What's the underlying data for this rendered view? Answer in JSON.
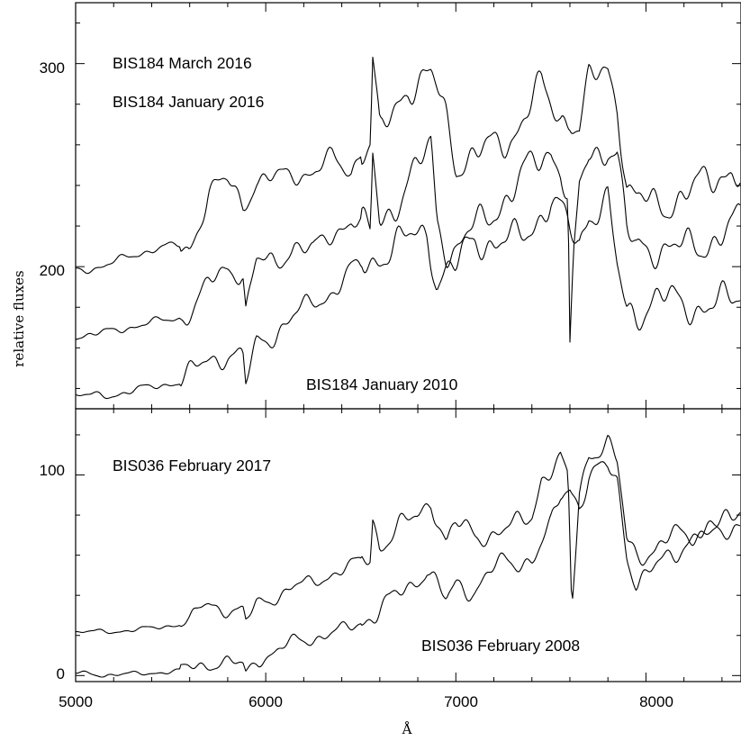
{
  "chart_data": [
    {
      "type": "line",
      "panel": "top",
      "xlabel": "Å",
      "ylabel": "relative fluxes",
      "xlim": [
        5000,
        8500
      ],
      "ylim": [
        130,
        330
      ],
      "x_ticks": [
        5000,
        6000,
        7000,
        8000
      ],
      "x_tick_labels": [
        "5000",
        "6000",
        "7000",
        "8000"
      ],
      "y_ticks": [
        200,
        300
      ],
      "y_tick_labels": [
        "200",
        "300"
      ],
      "annotations": [
        "BIS184 March 2016",
        "BIS184 January 2016",
        "BIS184 January 2010"
      ],
      "series": [
        {
          "label_ref": "BIS184 March 2016",
          "x": [
            5000,
            5150,
            5300,
            5450,
            5550,
            5600,
            5650,
            5700,
            5800,
            5880,
            5950,
            6050,
            6150,
            6250,
            6350,
            6450,
            6500,
            6550,
            6563,
            6600,
            6700,
            6750,
            6800,
            6870,
            6900,
            6950,
            7000,
            7100,
            7200,
            7300,
            7400,
            7450,
            7550,
            7600,
            7650,
            7700,
            7800,
            7850,
            7900,
            7950,
            8050,
            8150,
            8250,
            8350,
            8450,
            8500
          ],
          "values": [
            199,
            200,
            205,
            210,
            211,
            210,
            222,
            236,
            240,
            230,
            243,
            245,
            247,
            245,
            251,
            247,
            260,
            262,
            303,
            266,
            282,
            289,
            288,
            290,
            285,
            272,
            253,
            258,
            260,
            263,
            278,
            286,
            275,
            278,
            270,
            292,
            296,
            280,
            236,
            230,
            231,
            236,
            239,
            242,
            246,
            240
          ]
        },
        {
          "label_ref": "BIS184 January 2016",
          "x": [
            5000,
            5150,
            5300,
            5450,
            5550,
            5620,
            5700,
            5800,
            5880,
            5895,
            5950,
            6050,
            6150,
            6250,
            6350,
            6450,
            6550,
            6563,
            6600,
            6700,
            6800,
            6870,
            6900,
            6950,
            7000,
            7100,
            7200,
            7300,
            7400,
            7500,
            7550,
            7590,
            7600,
            7620,
            7650,
            7700,
            7800,
            7850,
            7900,
            7950,
            8050,
            8150,
            8250,
            8350,
            8450,
            8500
          ],
          "values": [
            166,
            168,
            170,
            173,
            175,
            182,
            192,
            199,
            195,
            177,
            201,
            202,
            213,
            208,
            215,
            222,
            215,
            255,
            224,
            237,
            248,
            258,
            222,
            208,
            205,
            220,
            232,
            238,
            248,
            256,
            248,
            230,
            155,
            200,
            240,
            257,
            263,
            255,
            215,
            205,
            208,
            210,
            212,
            215,
            217,
            220
          ]
        },
        {
          "label_ref": "BIS184 January 2010",
          "x": [
            5000,
            5150,
            5300,
            5450,
            5550,
            5620,
            5700,
            5800,
            5880,
            5895,
            5950,
            6050,
            6150,
            6250,
            6350,
            6450,
            6550,
            6650,
            6750,
            6850,
            6900,
            6950,
            7000,
            7100,
            7200,
            7300,
            7400,
            7500,
            7600,
            7650,
            7700,
            7800,
            7850,
            7900,
            7950,
            8050,
            8150,
            8250,
            8350,
            8450,
            8500
          ],
          "values": [
            136,
            137,
            139,
            141,
            143,
            149,
            156,
            158,
            155,
            141,
            160,
            166,
            176,
            185,
            188,
            196,
            200,
            209,
            216,
            221,
            193,
            195,
            196,
            213,
            212,
            215,
            222,
            230,
            215,
            210,
            228,
            234,
            200,
            179,
            178,
            182,
            180,
            182,
            183,
            185,
            188
          ]
        }
      ]
    },
    {
      "type": "line",
      "panel": "bottom",
      "xlabel": "Å",
      "ylabel": "relative fluxes",
      "xlim": [
        5000,
        8500
      ],
      "ylim": [
        -3,
        133
      ],
      "x_ticks": [
        5000,
        6000,
        7000,
        8000
      ],
      "x_tick_labels": [
        "5000",
        "6000",
        "7000",
        "8000"
      ],
      "y_ticks": [
        0,
        100
      ],
      "y_tick_labels": [
        "0",
        "100"
      ],
      "annotations": [
        "BIS036 February 2017",
        "BIS036 February 2008"
      ],
      "series": [
        {
          "label_ref": "BIS036 February 2017",
          "x": [
            5000,
            5150,
            5300,
            5450,
            5600,
            5650,
            5700,
            5800,
            5880,
            5895,
            5950,
            6050,
            6150,
            6250,
            6350,
            6450,
            6550,
            6563,
            6600,
            6700,
            6800,
            6870,
            6950,
            7000,
            7100,
            7200,
            7300,
            7400,
            7450,
            7550,
            7590,
            7610,
            7650,
            7700,
            7800,
            7850,
            7900,
            7950,
            8050,
            8150,
            8250,
            8350,
            8450,
            8500
          ],
          "values": [
            21,
            22,
            23,
            24,
            26,
            33,
            36,
            34,
            33,
            27,
            35,
            38,
            44,
            47,
            52,
            55,
            57,
            76,
            63,
            74,
            80,
            90,
            67,
            75,
            68,
            70,
            75,
            82,
            100,
            106,
            95,
            30,
            90,
            110,
            116,
            106,
            68,
            63,
            62,
            68,
            70,
            74,
            79,
            85
          ]
        },
        {
          "label_ref": "BIS036 February 2008",
          "x": [
            5000,
            5150,
            5300,
            5450,
            5550,
            5600,
            5700,
            5800,
            5880,
            5895,
            5950,
            6050,
            6150,
            6250,
            6350,
            6450,
            6550,
            6650,
            6750,
            6850,
            6950,
            7000,
            7100,
            7200,
            7300,
            7400,
            7500,
            7550,
            7600,
            7650,
            7700,
            7800,
            7850,
            7900,
            7950,
            8050,
            8150,
            8250,
            8350,
            8450,
            8500
          ],
          "values": [
            1,
            0,
            1,
            2,
            2,
            3,
            5,
            7,
            6,
            2,
            9,
            11,
            16,
            18,
            22,
            25,
            30,
            35,
            42,
            55,
            38,
            46,
            43,
            52,
            55,
            60,
            75,
            90,
            94,
            85,
            98,
            102,
            95,
            62,
            48,
            55,
            61,
            68,
            70,
            74,
            80
          ]
        }
      ]
    }
  ]
}
